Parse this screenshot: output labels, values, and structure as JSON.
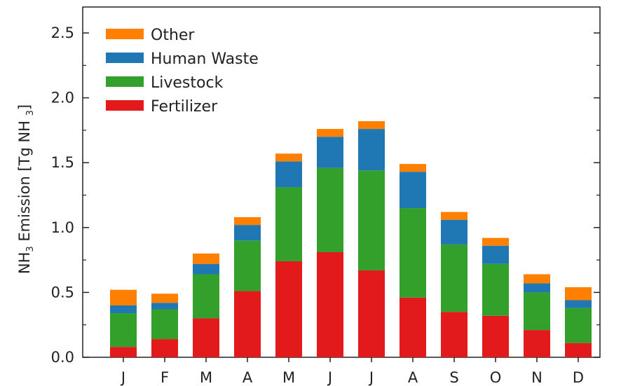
{
  "chart_data": {
    "type": "bar",
    "stacked": true,
    "categories": [
      "J",
      "F",
      "M",
      "A",
      "M",
      "J",
      "J",
      "A",
      "S",
      "O",
      "N",
      "D"
    ],
    "series": [
      {
        "name": "Fertilizer",
        "color": "#e31a1c",
        "values": [
          0.08,
          0.14,
          0.3,
          0.51,
          0.74,
          0.81,
          0.67,
          0.46,
          0.35,
          0.32,
          0.21,
          0.11
        ]
      },
      {
        "name": "Livestock",
        "color": "#33a02c",
        "values": [
          0.26,
          0.23,
          0.34,
          0.39,
          0.57,
          0.65,
          0.77,
          0.69,
          0.52,
          0.4,
          0.29,
          0.27
        ]
      },
      {
        "name": "Human Waste",
        "color": "#1f78b4",
        "values": [
          0.06,
          0.05,
          0.08,
          0.12,
          0.2,
          0.24,
          0.32,
          0.28,
          0.19,
          0.14,
          0.07,
          0.06
        ]
      },
      {
        "name": "Other",
        "color": "#ff7f00",
        "values": [
          0.12,
          0.07,
          0.08,
          0.06,
          0.06,
          0.06,
          0.06,
          0.06,
          0.06,
          0.06,
          0.07,
          0.1
        ]
      }
    ],
    "legend_order": [
      "Other",
      "Human Waste",
      "Livestock",
      "Fertilizer"
    ],
    "legend_position": "top-left",
    "ylim": [
      0,
      2.7
    ],
    "yticks": [
      "0.0",
      "0.5",
      "1.0",
      "1.5",
      "2.0",
      "2.5"
    ],
    "ylabel_parts": {
      "pre": "NH",
      "sub1": "3",
      "mid": " Emission [Tg NH ",
      "sub2": "3",
      "post": "]"
    },
    "xlabel": "",
    "title": "",
    "grid": false
  }
}
